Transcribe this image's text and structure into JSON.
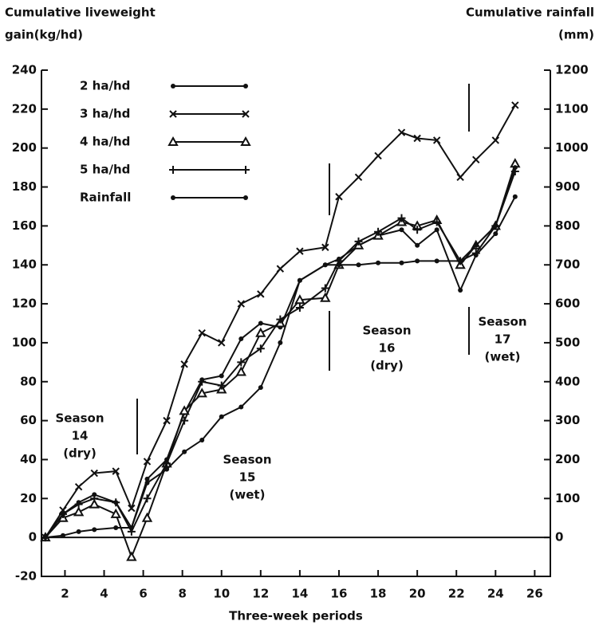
{
  "chart_data": {
    "type": "line",
    "y_label": [
      "Cumulative liveweight",
      "gain(kg/hd)"
    ],
    "y2_label": [
      "Cumulative rainfall",
      "(mm)"
    ],
    "x_label": "Three-week periods",
    "annotations": [
      [
        "Season",
        "14",
        "(dry)"
      ],
      [
        "Season",
        "15",
        "(wet)"
      ],
      [
        "Season",
        "16",
        "(dry)"
      ],
      [
        "Season",
        "17",
        "(wet)"
      ]
    ],
    "x": [
      1,
      1.9,
      2.7,
      3.5,
      4.6,
      5.4,
      6.2,
      7.2,
      8.1,
      9,
      10,
      11,
      12,
      13,
      14,
      15.3,
      16,
      17,
      18,
      19.2,
      20,
      21,
      22.2,
      23,
      24,
      25
    ],
    "xlim": [
      0.8,
      26.8
    ],
    "xticks": [
      2,
      4,
      6,
      8,
      10,
      12,
      14,
      16,
      18,
      20,
      22,
      24,
      26
    ],
    "ylim": [
      -20,
      240
    ],
    "yticks": [
      -20,
      0,
      20,
      40,
      60,
      80,
      100,
      120,
      140,
      160,
      180,
      200,
      220,
      240
    ],
    "y2lim": [
      -100,
      1200
    ],
    "y2ticks": [
      0,
      100,
      200,
      300,
      400,
      500,
      600,
      700,
      800,
      900,
      1000,
      1100,
      1200
    ],
    "series": [
      {
        "name": "2 ha/hd",
        "color": "#111111",
        "marker": "dot",
        "values": [
          0,
          12,
          18,
          22,
          18,
          5,
          30,
          40,
          64,
          81,
          83,
          102,
          110,
          108,
          132,
          140,
          143,
          150,
          155,
          158,
          150,
          158,
          127,
          145,
          156,
          175
        ]
      },
      {
        "name": "3 ha/hd",
        "color": "#111111",
        "marker": "x",
        "values": [
          0,
          14,
          26,
          33,
          34,
          15,
          39,
          60,
          89,
          105,
          100,
          120,
          125,
          138,
          147,
          149,
          175,
          185,
          196,
          208,
          205,
          204,
          185,
          194,
          204,
          222
        ]
      },
      {
        "name": "4 ha/hd",
        "color": "#111111",
        "marker": "triangle",
        "values": [
          0,
          10,
          13,
          17,
          12,
          -10,
          10,
          38,
          65,
          74,
          76,
          85,
          105,
          110,
          122,
          123,
          140,
          150,
          155,
          162,
          160,
          163,
          140,
          150,
          160,
          192
        ]
      },
      {
        "name": "5 ha/hd",
        "color": "#111111",
        "marker": "plus",
        "values": [
          0,
          12,
          17,
          20,
          18,
          3,
          20,
          38,
          60,
          80,
          78,
          90,
          97,
          112,
          118,
          128,
          142,
          152,
          157,
          164,
          158,
          162,
          142,
          146,
          160,
          188
        ]
      },
      {
        "name": "Rainfall",
        "color": "#111111",
        "marker": "dot",
        "axis": "y2",
        "values": [
          0,
          5,
          15,
          20,
          25,
          25,
          140,
          175,
          220,
          250,
          310,
          335,
          385,
          500,
          660,
          700,
          700,
          700,
          705,
          705,
          710,
          710,
          710,
          750,
          800,
          950
        ]
      }
    ]
  }
}
